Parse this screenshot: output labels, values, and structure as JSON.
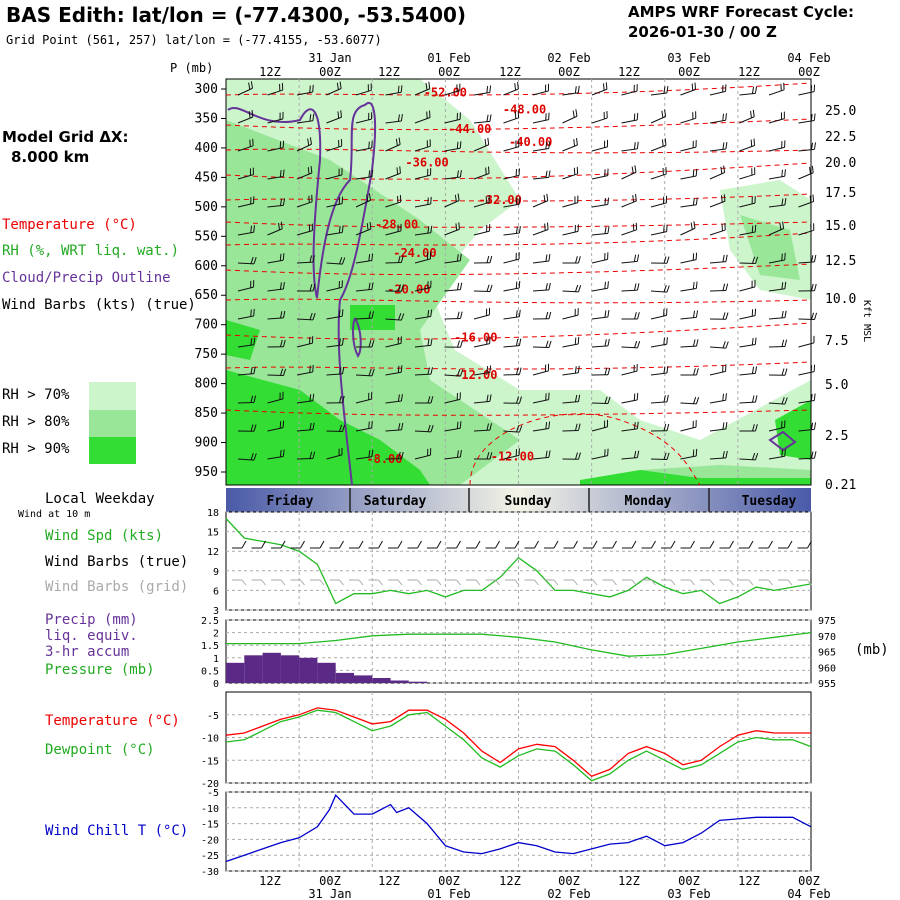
{
  "header": {
    "title": "BAS Edith:  lat/lon = (-77.4300, -53.5400)",
    "subtitle": "Grid Point (561, 257) lat/lon = (-77.4155, -53.6077)",
    "cycle_line1": "AMPS WRF Forecast Cycle:",
    "cycle_line2": "2026-01-30 / 00  Z",
    "model_grid_label": "Model Grid ΔX:",
    "model_grid_value": "8.000 km",
    "p_axis_label": "P (mb)",
    "kft_label": "Kft MSL",
    "mb_label": "(mb)"
  },
  "legend": {
    "temperature": "Temperature (°C)",
    "rh": "RH (%, WRT liq. wat.)",
    "cloud": "Cloud/Precip Outline",
    "barbs": "Wind Barbs (kts) (true)",
    "rh70": "RH > 70%",
    "rh80": "RH > 80%",
    "rh90": "RH > 90%",
    "local_weekday": "Local Weekday",
    "wind_10m": "Wind at 10 m",
    "wind_spd": "Wind Spd (kts)",
    "barbs_true": "Wind Barbs (true)",
    "barbs_grid": "Wind Barbs (grid)",
    "precip1": "Precip (mm)",
    "precip2": "liq. equiv.",
    "precip3": "3-hr accum",
    "pressure": "Pressure (mb)",
    "temp2": "Temperature (°C)",
    "dewpoint": "Dewpoint (°C)",
    "windchill": "Wind Chill T (°C)"
  },
  "colors": {
    "temperature": "#ff0000",
    "rh": "#22bb22",
    "cloud": "#663399",
    "wind_chill": "#0000cc",
    "rh70": "#ccf5cc",
    "rh80": "#99e699",
    "rh90": "#33dd33",
    "precip": "#5b2a86",
    "grid_barbs": "#aaaaaa"
  },
  "chart_data": {
    "type": "line",
    "time_axis": {
      "hour_labels": [
        "12Z",
        "00Z",
        "12Z",
        "00Z",
        "12Z",
        "00Z",
        "12Z",
        "00Z",
        "12Z",
        "00Z"
      ],
      "date_labels": [
        "31 Jan",
        "01 Feb",
        "02 Feb",
        "03 Feb",
        "04 Feb"
      ],
      "weekdays": [
        "Friday",
        "Saturday",
        "Sunday",
        "Monday",
        "Tuesday"
      ]
    },
    "cross_section": {
      "pressure_ticks": [
        300,
        350,
        400,
        450,
        500,
        550,
        600,
        650,
        700,
        750,
        800,
        850,
        900,
        950
      ],
      "height_ticks_kft": [
        "25.0",
        "22.5",
        "20.0",
        "17.5",
        "15.0",
        "12.5",
        "10.0",
        "7.5",
        "5.0",
        "2.5",
        "0.21"
      ],
      "temperature_labels": [
        {
          "t": "-52.00",
          "h": 36,
          "p": 306
        },
        {
          "t": "-48.00",
          "h": 49,
          "p": 335
        },
        {
          "t": "-44.00",
          "h": 40,
          "p": 368
        },
        {
          "t": "-40.00",
          "h": 50,
          "p": 390
        },
        {
          "t": "-36.00",
          "h": 33,
          "p": 425
        },
        {
          "t": "-32.00",
          "h": 45,
          "p": 488
        },
        {
          "t": "-28.00",
          "h": 28,
          "p": 530
        },
        {
          "t": "-24.00",
          "h": 31,
          "p": 578
        },
        {
          "t": "-20.00",
          "h": 30,
          "p": 640
        },
        {
          "t": "-16.00",
          "h": 41,
          "p": 722
        },
        {
          "t": "-12.00",
          "h": 41,
          "p": 785
        },
        {
          "t": "-8.00",
          "h": 26,
          "p": 928
        },
        {
          "t": "-12.00",
          "h": 47,
          "p": 924
        }
      ]
    },
    "wind_speed_10m": {
      "ylim": [
        3,
        18
      ],
      "ticks": [
        18,
        15,
        12,
        9,
        6,
        3
      ],
      "hours": [
        0,
        3,
        6,
        9,
        12,
        15,
        18,
        21,
        24,
        27,
        30,
        33,
        36,
        39,
        42,
        45,
        48,
        51,
        54,
        57,
        60,
        63,
        66,
        69,
        72,
        75,
        78,
        81,
        84,
        87,
        90,
        93,
        96
      ],
      "values": [
        17,
        14,
        13.5,
        13,
        12,
        10,
        4,
        5.5,
        5.5,
        6,
        5.5,
        6,
        5,
        6,
        6,
        8,
        11,
        9,
        6,
        6,
        5.5,
        5,
        6,
        8,
        6.5,
        5.5,
        6,
        4,
        5,
        6.5,
        6,
        6.5,
        7
      ]
    },
    "precip": {
      "ylim": [
        0,
        2.5
      ],
      "ticks": [
        2.5,
        2.0,
        1.5,
        1.0,
        0.5,
        0.0
      ],
      "hours": [
        0,
        3,
        6,
        9,
        12,
        15,
        18,
        21,
        24,
        27,
        30
      ],
      "values": [
        0.8,
        1.1,
        1.2,
        1.1,
        1.0,
        0.8,
        0.4,
        0.3,
        0.2,
        0.1,
        0.05
      ]
    },
    "pressure": {
      "ylim": [
        955,
        975
      ],
      "ticks": [
        975,
        970,
        965,
        960,
        955
      ],
      "hours": [
        0,
        6,
        12,
        18,
        24,
        30,
        36,
        42,
        48,
        54,
        60,
        66,
        72,
        78,
        84,
        90,
        96
      ],
      "values": [
        967.5,
        967.5,
        967.5,
        968.5,
        970,
        970.5,
        970.5,
        970.5,
        969.5,
        968,
        965.5,
        963.5,
        964,
        966,
        968,
        969.5,
        971
      ]
    },
    "temperature": {
      "ylim": [
        -20,
        0
      ],
      "ticks": [
        -5,
        -10,
        -15,
        -20
      ],
      "hours": [
        0,
        3,
        6,
        9,
        12,
        15,
        18,
        21,
        24,
        27,
        30,
        33,
        36,
        39,
        42,
        45,
        48,
        51,
        54,
        57,
        60,
        63,
        66,
        69,
        72,
        75,
        78,
        81,
        84,
        87,
        90,
        93,
        96
      ],
      "values": [
        -9.5,
        -9,
        -7.5,
        -6,
        -5,
        -3.5,
        -4,
        -5.5,
        -7,
        -6.5,
        -4,
        -4,
        -6,
        -9,
        -13,
        -15.5,
        -12.5,
        -11.5,
        -12,
        -15,
        -18.5,
        -17,
        -13.5,
        -12,
        -13.5,
        -16,
        -15,
        -12,
        -9.5,
        -8.5,
        -9,
        -9,
        -9
      ]
    },
    "dewpoint": {
      "hours": [
        0,
        3,
        6,
        9,
        12,
        15,
        18,
        21,
        24,
        27,
        30,
        33,
        36,
        39,
        42,
        45,
        48,
        51,
        54,
        57,
        60,
        63,
        66,
        69,
        72,
        75,
        78,
        81,
        84,
        87,
        90,
        93,
        96
      ],
      "values": [
        -11,
        -10.5,
        -8.5,
        -6.5,
        -5.5,
        -4,
        -4.5,
        -6.5,
        -8.5,
        -7.5,
        -5,
        -4.5,
        -7.5,
        -10.5,
        -14.5,
        -16.5,
        -14,
        -12.5,
        -13,
        -16,
        -19.5,
        -18,
        -15,
        -13,
        -15,
        -17,
        -16,
        -13.5,
        -11,
        -10,
        -10.5,
        -10.5,
        -12
      ]
    },
    "wind_chill": {
      "ylim": [
        -30,
        -5
      ],
      "ticks": [
        -5,
        -10,
        -15,
        -20,
        -25,
        -30
      ],
      "hours": [
        0,
        3,
        6,
        9,
        12,
        15,
        17,
        18,
        21,
        24,
        27,
        28,
        30,
        33,
        36,
        39,
        42,
        45,
        48,
        51,
        54,
        57,
        60,
        63,
        66,
        69,
        72,
        75,
        78,
        81,
        84,
        87,
        90,
        93,
        96
      ],
      "values": [
        -27,
        -25,
        -23,
        -21,
        -19.5,
        -16,
        -10.5,
        -6,
        -12,
        -12,
        -9,
        -11.5,
        -10,
        -15,
        -22,
        -24,
        -24.5,
        -23,
        -21,
        -22,
        -24,
        -24.5,
        -23,
        -21.5,
        -21,
        -19,
        -22,
        -21,
        -18,
        -14,
        -13.5,
        -13,
        -13,
        -13,
        -16
      ]
    }
  }
}
